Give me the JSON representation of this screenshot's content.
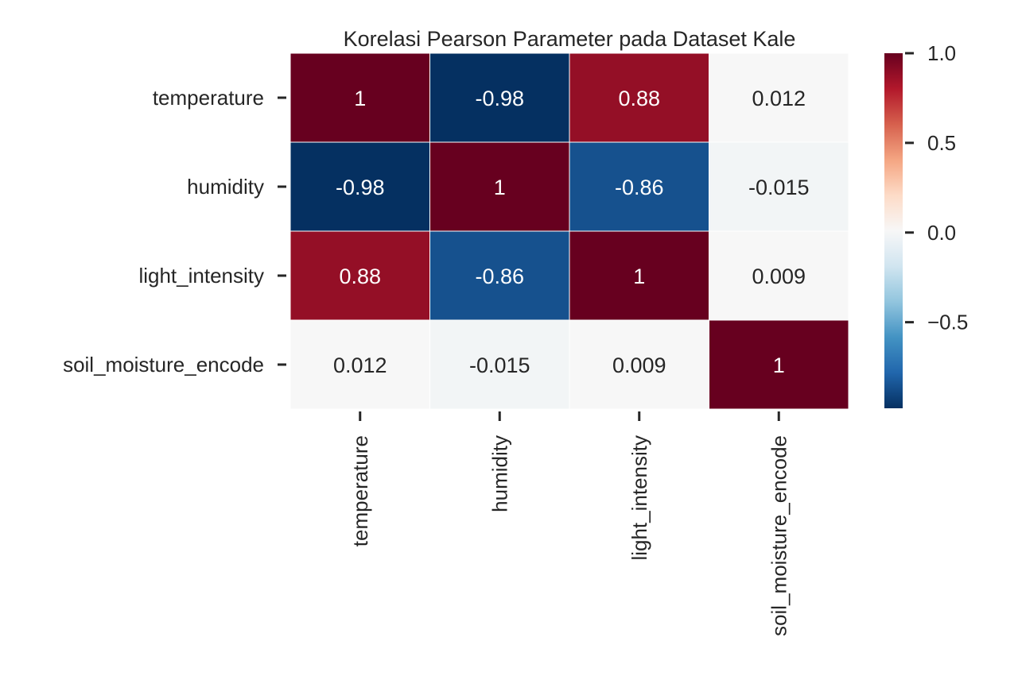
{
  "chart_data": {
    "type": "heatmap",
    "title": "Korelasi Pearson Parameter pada Dataset Kale",
    "xlabel": "",
    "ylabel": "",
    "row_labels": [
      "temperature",
      "humidity",
      "light_intensity",
      "soil_moisture_encode"
    ],
    "col_labels": [
      "temperature",
      "humidity",
      "light_intensity",
      "soil_moisture_encode"
    ],
    "values": [
      [
        1,
        -0.98,
        0.88,
        0.012
      ],
      [
        -0.98,
        1,
        -0.86,
        -0.015
      ],
      [
        0.88,
        -0.86,
        1,
        0.009
      ],
      [
        0.012,
        -0.015,
        0.009,
        1
      ]
    ],
    "annotations": [
      [
        "1",
        "-0.98",
        "0.88",
        "0.012"
      ],
      [
        "-0.98",
        "1",
        "-0.86",
        "-0.015"
      ],
      [
        "0.88",
        "-0.86",
        "1",
        "0.009"
      ],
      [
        "0.012",
        "-0.015",
        "0.009",
        "1"
      ]
    ],
    "colormap": "RdBu_r",
    "vmin": -0.98,
    "vmax": 1.0,
    "colorbar": {
      "ticks": [
        1.0,
        0.5,
        0.0,
        -0.5
      ],
      "tick_labels": [
        "1.0",
        "0.5",
        "0.0",
        "−0.5"
      ]
    },
    "grid": false,
    "cell_borders": true
  }
}
